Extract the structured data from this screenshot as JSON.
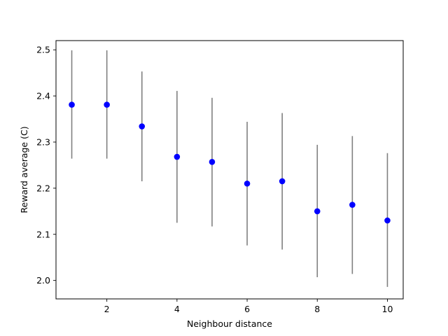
{
  "chart_data": {
    "type": "scatter",
    "title": "",
    "xlabel": "Neighbour distance",
    "ylabel": "Reward average (C)",
    "xlim": [
      0.55,
      10.45
    ],
    "ylim": [
      1.96,
      2.52
    ],
    "xticks": [
      2,
      4,
      6,
      8,
      10
    ],
    "xtick_labels": [
      "2",
      "4",
      "6",
      "8",
      "10"
    ],
    "yticks": [
      2.0,
      2.1,
      2.2,
      2.3,
      2.4,
      2.5
    ],
    "ytick_labels": [
      "2.0",
      "2.1",
      "2.2",
      "2.3",
      "2.4",
      "2.5"
    ],
    "grid": false,
    "legend": "none",
    "series": [
      {
        "x": [
          1,
          2,
          3,
          4,
          5,
          6,
          7,
          8,
          9,
          10
        ],
        "y": [
          2.381,
          2.381,
          2.334,
          2.268,
          2.257,
          2.21,
          2.215,
          2.15,
          2.164,
          2.13
        ],
        "y_lower": [
          2.264,
          2.264,
          2.215,
          2.125,
          2.117,
          2.076,
          2.067,
          2.007,
          2.014,
          1.986
        ],
        "y_upper": [
          2.499,
          2.499,
          2.453,
          2.411,
          2.396,
          2.344,
          2.363,
          2.294,
          2.313,
          2.276
        ],
        "marker_color": "#0000ff",
        "errorbar_color": "#808080"
      }
    ]
  }
}
